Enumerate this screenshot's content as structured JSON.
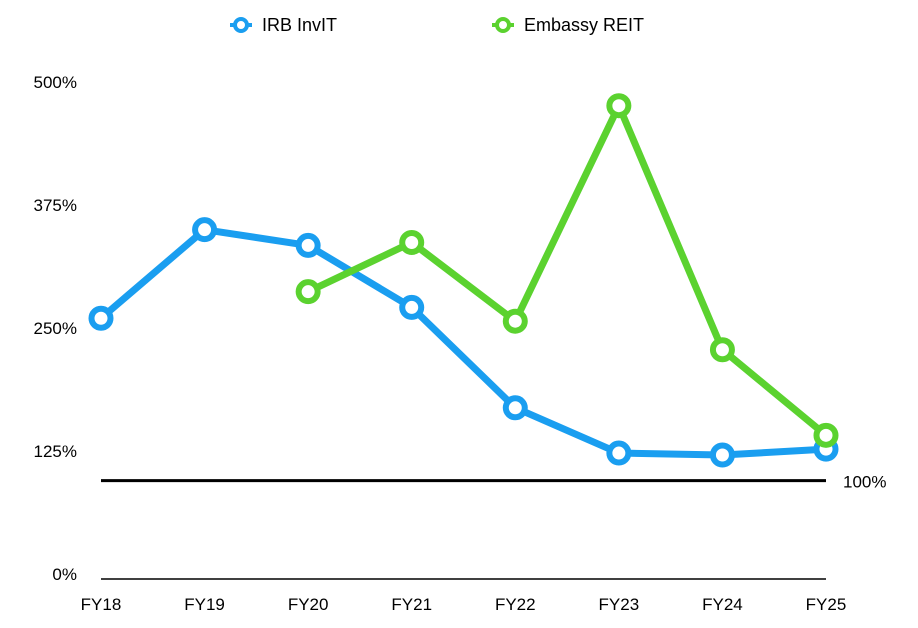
{
  "chart_data": {
    "type": "line",
    "categories": [
      "FY18",
      "FY19",
      "FY20",
      "FY21",
      "FY22",
      "FY23",
      "FY24",
      "FY25"
    ],
    "series": [
      {
        "name": "IRB InvIT",
        "color": "#1a9ef0",
        "values": [
          265,
          355,
          339,
          276,
          174,
          128,
          126,
          132
        ]
      },
      {
        "name": "Embassy REIT",
        "color": "#5bd22f",
        "values": [
          null,
          null,
          292,
          342,
          null,
          481,
          233,
          146
        ]
      }
    ],
    "embassy_fy22": 262,
    "y_ticks": [
      "0%",
      "125%",
      "250%",
      "375%",
      "500%"
    ],
    "y_tick_values": [
      0,
      125,
      250,
      375,
      500
    ],
    "ylim": [
      0,
      500
    ],
    "reference_line": {
      "value": 100,
      "label": "100%",
      "color": "#000000"
    },
    "legend": {
      "placement": "top"
    },
    "grid": false
  }
}
